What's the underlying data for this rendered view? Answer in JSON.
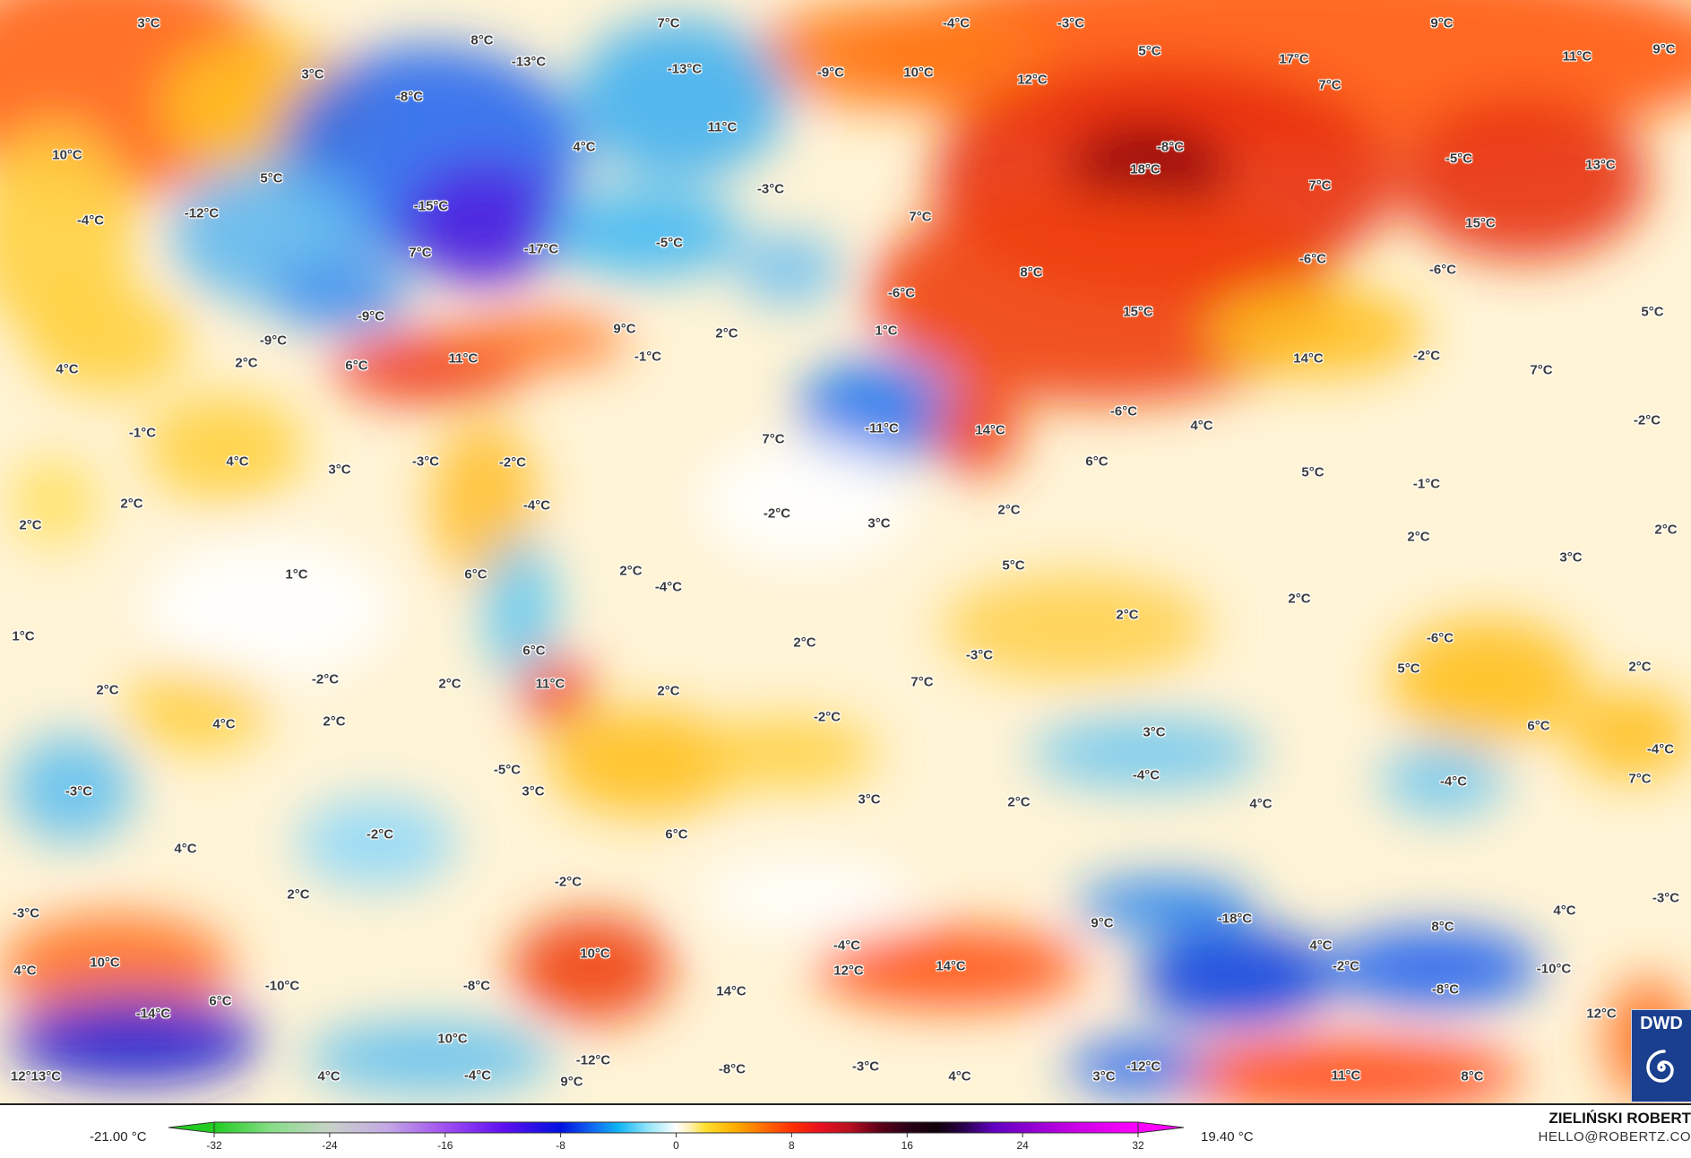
{
  "map": {
    "labels": [
      "3°C",
      "7°C",
      "-4°C",
      "-3°C",
      "9°C",
      "8°C",
      "5°C",
      "11°C",
      "9°C",
      "-13°C",
      "-13°C",
      "-9°C",
      "10°C",
      "12°C",
      "17°C",
      "7°C",
      "3°C",
      "-8°C",
      "11°C",
      "4°C",
      "-8°C",
      "-5°C",
      "13°C",
      "18°C",
      "10°C",
      "5°C",
      "-3°C",
      "7°C",
      "-15°C",
      "-12°C",
      "-4°C",
      "7°C",
      "15°C",
      "-17°C",
      "-5°C",
      "7°C",
      "-6°C",
      "8°C",
      "-6°C",
      "-6°C",
      "5°C",
      "-9°C",
      "15°C",
      "9°C",
      "2°C",
      "1°C",
      "2°C",
      "-9°C",
      "-1°C",
      "11°C",
      "6°C",
      "14°C",
      "-2°C",
      "4°C",
      "7°C",
      "-6°C",
      "-1°C",
      "-11°C",
      "14°C",
      "4°C",
      "-2°C",
      "7°C",
      "4°C",
      "3°C",
      "-3°C",
      "-2°C",
      "6°C",
      "5°C",
      "-1°C",
      "2°C",
      "-4°C",
      "2°C",
      "-2°C",
      "3°C",
      "2°C",
      "2°C",
      "2°C",
      "3°C",
      "5°C",
      "1°C",
      "6°C",
      "2°C",
      "-4°C",
      "2°C",
      "2°C",
      "1°C",
      "2°C",
      "-6°C",
      "6°C",
      "-3°C",
      "-2°C",
      "2°C",
      "11°C",
      "5°C",
      "2°C",
      "2°C",
      "2°C",
      "7°C",
      "-2°C",
      "2°C",
      "4°C",
      "6°C",
      "3°C",
      "-4°C",
      "-5°C",
      "-4°C",
      "-4°C",
      "7°C",
      "-3°C",
      "3°C",
      "3°C",
      "2°C",
      "4°C",
      "-2°C",
      "6°C",
      "4°C",
      "-2°C",
      "2°C",
      "-3°C",
      "-3°C",
      "4°C",
      "-18°C",
      "9°C",
      "8°C",
      "-4°C",
      "4°C",
      "10°C",
      "10°C",
      "14°C",
      "-2°C",
      "-10°C",
      "12°C",
      "4°C",
      "-10°C",
      "-8°C",
      "-8°C",
      "14°C",
      "6°C",
      "-14°C",
      "12°C",
      "10°C",
      "-12°C",
      "-12°C",
      "-3°C",
      "-8°C",
      "-4°C",
      "9°C",
      "4°C",
      "4°C",
      "3°C",
      "11°C",
      "8°C",
      "12°13°C"
    ]
  },
  "logo": {
    "text": "DWD"
  },
  "colorbar": {
    "min_label": "-21.00 °C",
    "max_label": "19.40 °C",
    "ticks": [
      "-32",
      "-24",
      "-16",
      "-8",
      "0",
      "8",
      "16",
      "24",
      "32"
    ],
    "range": [
      -32,
      32
    ],
    "colors": {
      "-32": "#22cc22",
      "-28": "#88dd88",
      "-24": "#c8d2c8",
      "-20": "#c4a8e4",
      "-16": "#a050f0",
      "-12": "#6010f0",
      "-8": "#0010e0",
      "-6": "#1060f0",
      "-4": "#10b4f4",
      "-2": "#90e4f8",
      "0": "#ffffff",
      "1": "#fff0b0",
      "2": "#ffe030",
      "4": "#ffb000",
      "6": "#ff7000",
      "8": "#ff3000",
      "10": "#e81020",
      "12": "#b81020",
      "14": "#600018",
      "16": "#2a0018",
      "18": "#100008",
      "20": "#2a0050",
      "22": "#6000c0",
      "28": "#d000e8",
      "32": "#ff00ff"
    }
  },
  "credit": {
    "author": "ZIELIŃSKI ROBERT",
    "email": "HELLO@ROBERTZ.CO"
  }
}
